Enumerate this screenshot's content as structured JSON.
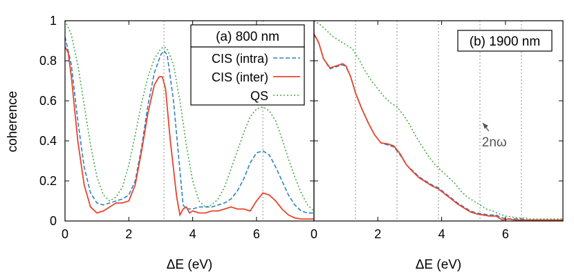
{
  "figure": {
    "ylabel": "coherence"
  },
  "chart_data": [
    {
      "type": "line",
      "title": "(a) 800 nm",
      "xlabel": "ΔE (eV)",
      "ylabel": "coherence",
      "xlim": [
        0,
        7.8
      ],
      "ylim": [
        0,
        1
      ],
      "xticks": [
        0,
        2,
        4,
        6
      ],
      "yticks": [
        0,
        0.2,
        0.4,
        0.6,
        0.8,
        1
      ],
      "ytick_labels": [
        "0",
        "0.2",
        "0.4",
        "0.6",
        "0.8",
        "1"
      ],
      "vlines": [
        3.1,
        6.2
      ],
      "legend_position": "top-right",
      "series": [
        {
          "name": "CIS (intra)",
          "color": "#2f7fc1",
          "dash": "6,3",
          "x": [
            0,
            0.2,
            0.4,
            0.6,
            0.8,
            1.0,
            1.2,
            1.4,
            1.6,
            1.8,
            2.0,
            2.2,
            2.4,
            2.6,
            2.8,
            3.0,
            3.1,
            3.2,
            3.4,
            3.6,
            3.7,
            3.8,
            4.0,
            4.2,
            4.4,
            4.6,
            4.8,
            5.0,
            5.2,
            5.4,
            5.6,
            5.8,
            6.0,
            6.2,
            6.4,
            6.6,
            6.8,
            7.0,
            7.2,
            7.4,
            7.6,
            7.8
          ],
          "y": [
            0.92,
            0.78,
            0.5,
            0.27,
            0.14,
            0.09,
            0.08,
            0.09,
            0.1,
            0.11,
            0.13,
            0.2,
            0.37,
            0.58,
            0.74,
            0.83,
            0.85,
            0.83,
            0.6,
            0.25,
            0.08,
            0.06,
            0.06,
            0.07,
            0.07,
            0.07,
            0.08,
            0.09,
            0.11,
            0.15,
            0.21,
            0.29,
            0.34,
            0.35,
            0.33,
            0.27,
            0.2,
            0.13,
            0.08,
            0.05,
            0.04,
            0.04
          ]
        },
        {
          "name": "CIS (inter)",
          "color": "#e8432b",
          "dash": "",
          "x": [
            0,
            0.1,
            0.2,
            0.4,
            0.6,
            0.8,
            1.0,
            1.2,
            1.4,
            1.6,
            1.8,
            2.0,
            2.2,
            2.4,
            2.6,
            2.8,
            2.95,
            3.05,
            3.15,
            3.3,
            3.5,
            3.6,
            3.7,
            3.8,
            3.9,
            4.0,
            4.2,
            4.4,
            4.6,
            4.8,
            5.0,
            5.2,
            5.4,
            5.6,
            5.8,
            6.0,
            6.2,
            6.4,
            6.6,
            6.8,
            7.0,
            7.2,
            7.4,
            7.6,
            7.8
          ],
          "y": [
            0.87,
            0.84,
            0.72,
            0.4,
            0.18,
            0.07,
            0.04,
            0.05,
            0.07,
            0.09,
            0.09,
            0.1,
            0.18,
            0.35,
            0.54,
            0.68,
            0.72,
            0.72,
            0.66,
            0.4,
            0.12,
            0.03,
            0.06,
            0.07,
            0.04,
            0.05,
            0.04,
            0.04,
            0.05,
            0.05,
            0.06,
            0.07,
            0.06,
            0.06,
            0.05,
            0.1,
            0.14,
            0.13,
            0.1,
            0.06,
            0.03,
            0.015,
            0.01,
            0.01,
            0.01
          ]
        },
        {
          "name": "QS",
          "color": "#3daa3d",
          "dash": "2,3",
          "x": [
            0,
            0.2,
            0.4,
            0.6,
            0.8,
            1.0,
            1.2,
            1.4,
            1.6,
            1.8,
            2.0,
            2.2,
            2.4,
            2.6,
            2.8,
            3.0,
            3.1,
            3.2,
            3.4,
            3.6,
            3.8,
            4.0,
            4.2,
            4.4,
            4.6,
            4.8,
            5.0,
            5.2,
            5.4,
            5.6,
            5.8,
            6.0,
            6.2,
            6.4,
            6.6,
            6.8,
            7.0,
            7.2,
            7.4,
            7.6,
            7.8
          ],
          "y": [
            1.0,
            0.93,
            0.78,
            0.58,
            0.38,
            0.22,
            0.13,
            0.1,
            0.12,
            0.17,
            0.28,
            0.43,
            0.59,
            0.72,
            0.81,
            0.86,
            0.87,
            0.86,
            0.78,
            0.6,
            0.38,
            0.2,
            0.1,
            0.07,
            0.08,
            0.11,
            0.17,
            0.26,
            0.35,
            0.44,
            0.52,
            0.56,
            0.57,
            0.55,
            0.5,
            0.41,
            0.31,
            0.22,
            0.14,
            0.08,
            0.05
          ]
        }
      ]
    },
    {
      "type": "line",
      "title": "(b) 1900 nm",
      "xlabel": "ΔE (eV)",
      "xlim": [
        0,
        7.8
      ],
      "ylim": [
        0,
        1
      ],
      "xticks": [
        0,
        2,
        4,
        6
      ],
      "vlines": [
        1.3,
        2.6,
        3.9,
        5.2,
        6.5
      ],
      "annotation": {
        "text": "2nω",
        "x": 5.65,
        "y": 0.38,
        "arrow_to": [
          5.2,
          0.5
        ]
      },
      "series": [
        {
          "name": "CIS (intra)",
          "color": "#2f7fc1",
          "dash": "6,3",
          "x": [
            0,
            0.15,
            0.3,
            0.5,
            0.7,
            0.9,
            1.0,
            1.15,
            1.3,
            1.5,
            1.7,
            1.9,
            2.1,
            2.3,
            2.5,
            2.7,
            2.9,
            3.1,
            3.3,
            3.5,
            3.7,
            3.9,
            4.1,
            4.3,
            4.5,
            4.7,
            4.9,
            5.1,
            5.3,
            5.5,
            5.7,
            5.9,
            6.1,
            6.3,
            6.5,
            6.7,
            7.0,
            7.4,
            7.8
          ],
          "y": [
            0.93,
            0.89,
            0.81,
            0.76,
            0.77,
            0.78,
            0.77,
            0.72,
            0.64,
            0.56,
            0.49,
            0.43,
            0.39,
            0.38,
            0.37,
            0.33,
            0.28,
            0.25,
            0.22,
            0.2,
            0.18,
            0.165,
            0.14,
            0.115,
            0.09,
            0.07,
            0.05,
            0.04,
            0.035,
            0.03,
            0.03,
            0.015,
            0.01,
            0.01,
            0.01,
            0.005,
            0.005,
            0.005,
            0.005
          ]
        },
        {
          "name": "CIS (inter)",
          "color": "#e8432b",
          "dash": "",
          "x": [
            0,
            0.15,
            0.3,
            0.5,
            0.7,
            0.9,
            1.0,
            1.15,
            1.3,
            1.5,
            1.7,
            1.9,
            2.1,
            2.3,
            2.5,
            2.7,
            2.9,
            3.1,
            3.3,
            3.5,
            3.7,
            3.9,
            4.1,
            4.3,
            4.5,
            4.7,
            4.9,
            5.1,
            5.3,
            5.5,
            5.7,
            5.9,
            6.1,
            6.3,
            6.5,
            6.7,
            7.0,
            7.4,
            7.8
          ],
          "y": [
            0.935,
            0.89,
            0.81,
            0.765,
            0.775,
            0.785,
            0.775,
            0.72,
            0.64,
            0.56,
            0.49,
            0.43,
            0.39,
            0.385,
            0.375,
            0.335,
            0.28,
            0.245,
            0.215,
            0.195,
            0.175,
            0.16,
            0.135,
            0.11,
            0.085,
            0.065,
            0.045,
            0.035,
            0.03,
            0.025,
            0.025,
            0.005,
            0.01,
            0.005,
            0.005,
            0.005,
            0.005,
            0.005,
            0.005
          ]
        },
        {
          "name": "QS",
          "color": "#3daa3d",
          "dash": "2,3",
          "x": [
            0,
            0.2,
            0.4,
            0.6,
            0.8,
            1.0,
            1.2,
            1.4,
            1.6,
            1.8,
            2.0,
            2.2,
            2.4,
            2.6,
            2.8,
            3.0,
            3.2,
            3.4,
            3.6,
            3.8,
            4.0,
            4.2,
            4.4,
            4.6,
            4.8,
            5.0,
            5.2,
            5.4,
            5.6,
            5.8,
            6.0,
            6.2,
            6.4,
            6.6,
            6.8,
            7.0,
            7.4,
            7.8
          ],
          "y": [
            1.0,
            0.98,
            0.95,
            0.92,
            0.9,
            0.88,
            0.86,
            0.81,
            0.75,
            0.7,
            0.66,
            0.62,
            0.59,
            0.57,
            0.53,
            0.48,
            0.42,
            0.37,
            0.32,
            0.28,
            0.25,
            0.22,
            0.19,
            0.15,
            0.12,
            0.1,
            0.08,
            0.06,
            0.05,
            0.035,
            0.025,
            0.02,
            0.015,
            0.015,
            0.01,
            0.01,
            0.01,
            0.01
          ]
        }
      ]
    }
  ]
}
